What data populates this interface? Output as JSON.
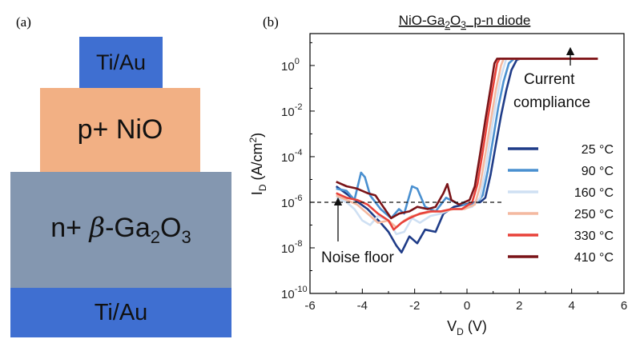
{
  "panel_a": {
    "label": "(a)",
    "layers": {
      "top_contact": "Ti/Au",
      "p_layer": "p+ NiO",
      "n_layer_prefix": "n+",
      "n_layer_beta": "β",
      "n_layer_main": "-Ga",
      "n_layer_sub2": "2",
      "n_layer_O": "O",
      "n_layer_sub3": "3",
      "bottom_contact": "Ti/Au"
    },
    "colors": {
      "contact": "#3f6fd1",
      "nio": "#f2b084",
      "ga2o3": "#8497b0"
    }
  },
  "panel_b": {
    "label": "(b)"
  },
  "chart_data": {
    "type": "line",
    "title_main": "NiO-Ga",
    "title_sub2": "2",
    "title_O": "O",
    "title_sub3": "3",
    "title_rest": "  p-n diode",
    "xlabel_main": "V",
    "xlabel_sub": "D",
    "xlabel_unit": " (V)",
    "ylabel_main": "I",
    "ylabel_sub": "D",
    "ylabel_unit_a": " (A/cm",
    "ylabel_unit_sup": "2",
    "ylabel_unit_b": ")",
    "xlim": [
      -6,
      6
    ],
    "ylim_log10": [
      -10,
      1.4
    ],
    "xticks": [
      -6,
      -4,
      -2,
      0,
      2,
      4,
      6
    ],
    "xtick_labels": [
      "-6",
      "-4",
      "-2",
      "0",
      "2",
      "4",
      "6"
    ],
    "yticks_log10": [
      0,
      -2,
      -4,
      -6,
      -8,
      -10
    ],
    "ytick_base": "10",
    "ytick_exps": [
      "0",
      "-2",
      "-4",
      "-6",
      "-8",
      "-10"
    ],
    "noise_floor": {
      "value_log10": -6,
      "label": "Noise floor"
    },
    "compliance": {
      "value_log10": 0.3,
      "label_line1": "Current",
      "label_line2": "compliance"
    },
    "series": [
      {
        "name": "25 °C",
        "color": "#1f3c88",
        "points": [
          [
            -5,
            -5.3
          ],
          [
            -4.4,
            -5.8
          ],
          [
            -3.8,
            -6.3
          ],
          [
            -3.3,
            -6.9
          ],
          [
            -3,
            -7.3
          ],
          [
            -2.7,
            -7.9
          ],
          [
            -2.5,
            -8.2
          ],
          [
            -2.2,
            -7.5
          ],
          [
            -1.9,
            -7.8
          ],
          [
            -1.6,
            -7.2
          ],
          [
            -1.2,
            -7.3
          ],
          [
            -0.9,
            -6.5
          ],
          [
            -0.5,
            -6.2
          ],
          [
            -0.1,
            -6.1
          ],
          [
            0.3,
            -6.0
          ],
          [
            0.5,
            -6.0
          ],
          [
            0.7,
            -5.8
          ],
          [
            0.9,
            -4.8
          ],
          [
            1.1,
            -3.5
          ],
          [
            1.3,
            -2.2
          ],
          [
            1.5,
            -1.1
          ],
          [
            1.7,
            -0.2
          ],
          [
            1.9,
            0.25
          ],
          [
            2.05,
            0.3
          ],
          [
            5.0,
            0.3
          ]
        ]
      },
      {
        "name": "90 °C",
        "color": "#4a90d0",
        "points": [
          [
            -5,
            -5.4
          ],
          [
            -4.6,
            -5.5
          ],
          [
            -4.3,
            -5.9
          ],
          [
            -4.05,
            -4.7
          ],
          [
            -3.9,
            -4.9
          ],
          [
            -3.7,
            -5.7
          ],
          [
            -3.3,
            -6.3
          ],
          [
            -2.9,
            -6.7
          ],
          [
            -2.6,
            -6.3
          ],
          [
            -2.4,
            -6.5
          ],
          [
            -2.1,
            -5.3
          ],
          [
            -1.9,
            -5.4
          ],
          [
            -1.6,
            -6.2
          ],
          [
            -1.2,
            -6.4
          ],
          [
            -0.8,
            -5.8
          ],
          [
            -0.3,
            -6.1
          ],
          [
            0.1,
            -6.1
          ],
          [
            0.4,
            -6.0
          ],
          [
            0.6,
            -5.7
          ],
          [
            0.8,
            -4.6
          ],
          [
            1.0,
            -3.2
          ],
          [
            1.2,
            -1.8
          ],
          [
            1.4,
            -0.7
          ],
          [
            1.6,
            0.1
          ],
          [
            1.8,
            0.3
          ],
          [
            5.0,
            0.3
          ]
        ]
      },
      {
        "name": "160 °C",
        "color": "#cfe0f3",
        "points": [
          [
            -5,
            -5.8
          ],
          [
            -4.6,
            -6.0
          ],
          [
            -4.3,
            -6.3
          ],
          [
            -4.0,
            -6.8
          ],
          [
            -3.7,
            -7.0
          ],
          [
            -3.4,
            -6.6
          ],
          [
            -3.0,
            -6.8
          ],
          [
            -2.7,
            -7.4
          ],
          [
            -2.4,
            -7.3
          ],
          [
            -2.1,
            -6.7
          ],
          [
            -1.8,
            -6.9
          ],
          [
            -1.4,
            -6.6
          ],
          [
            -1.0,
            -6.5
          ],
          [
            -0.6,
            -6.3
          ],
          [
            -0.2,
            -6.3
          ],
          [
            0.2,
            -6.2
          ],
          [
            0.5,
            -5.8
          ],
          [
            0.7,
            -4.6
          ],
          [
            0.9,
            -3.1
          ],
          [
            1.1,
            -1.7
          ],
          [
            1.3,
            -0.5
          ],
          [
            1.5,
            0.3
          ],
          [
            5.0,
            0.3
          ]
        ]
      },
      {
        "name": "250 °C",
        "color": "#f4b9a0",
        "points": [
          [
            -5,
            -5.7
          ],
          [
            -4.6,
            -5.9
          ],
          [
            -4.2,
            -6.1
          ],
          [
            -3.8,
            -6.5
          ],
          [
            -3.4,
            -6.9
          ],
          [
            -3.0,
            -6.8
          ],
          [
            -2.7,
            -7.1
          ],
          [
            -2.4,
            -6.8
          ],
          [
            -2.1,
            -6.6
          ],
          [
            -1.7,
            -6.5
          ],
          [
            -1.3,
            -6.4
          ],
          [
            -0.9,
            -6.4
          ],
          [
            -0.5,
            -6.3
          ],
          [
            -0.1,
            -6.3
          ],
          [
            0.3,
            -6.1
          ],
          [
            0.5,
            -5.3
          ],
          [
            0.7,
            -3.9
          ],
          [
            0.9,
            -2.5
          ],
          [
            1.1,
            -1.1
          ],
          [
            1.3,
            0.0
          ],
          [
            1.4,
            0.3
          ],
          [
            5.0,
            0.3
          ]
        ]
      },
      {
        "name": "330 °C",
        "color": "#e8423a",
        "points": [
          [
            -5,
            -5.6
          ],
          [
            -4.6,
            -5.8
          ],
          [
            -4.2,
            -5.9
          ],
          [
            -3.8,
            -6.1
          ],
          [
            -3.4,
            -6.5
          ],
          [
            -3.0,
            -6.8
          ],
          [
            -2.8,
            -7.2
          ],
          [
            -2.5,
            -6.9
          ],
          [
            -2.2,
            -6.7
          ],
          [
            -1.8,
            -6.5
          ],
          [
            -1.4,
            -6.4
          ],
          [
            -1.0,
            -6.4
          ],
          [
            -0.6,
            -6.3
          ],
          [
            -0.2,
            -6.3
          ],
          [
            0.2,
            -6.0
          ],
          [
            0.4,
            -5.2
          ],
          [
            0.6,
            -3.8
          ],
          [
            0.8,
            -2.3
          ],
          [
            1.0,
            -0.9
          ],
          [
            1.15,
            0.1
          ],
          [
            1.25,
            0.3
          ],
          [
            5.0,
            0.3
          ]
        ]
      },
      {
        "name": "410 °C",
        "color": "#7a1418",
        "points": [
          [
            -5,
            -5.1
          ],
          [
            -4.6,
            -5.3
          ],
          [
            -4.2,
            -5.4
          ],
          [
            -3.8,
            -5.6
          ],
          [
            -3.5,
            -5.7
          ],
          [
            -3.2,
            -6.2
          ],
          [
            -2.9,
            -6.7
          ],
          [
            -2.6,
            -6.5
          ],
          [
            -2.2,
            -6.4
          ],
          [
            -1.9,
            -6.2
          ],
          [
            -1.5,
            -6.3
          ],
          [
            -1.2,
            -6.2
          ],
          [
            -0.9,
            -5.6
          ],
          [
            -0.75,
            -5.2
          ],
          [
            -0.6,
            -5.9
          ],
          [
            -0.3,
            -6.1
          ],
          [
            0.1,
            -5.9
          ],
          [
            0.3,
            -5.3
          ],
          [
            0.5,
            -3.9
          ],
          [
            0.7,
            -2.4
          ],
          [
            0.9,
            -1.0
          ],
          [
            1.05,
            0.1
          ],
          [
            1.15,
            0.3
          ],
          [
            5.0,
            0.3
          ]
        ]
      }
    ]
  }
}
